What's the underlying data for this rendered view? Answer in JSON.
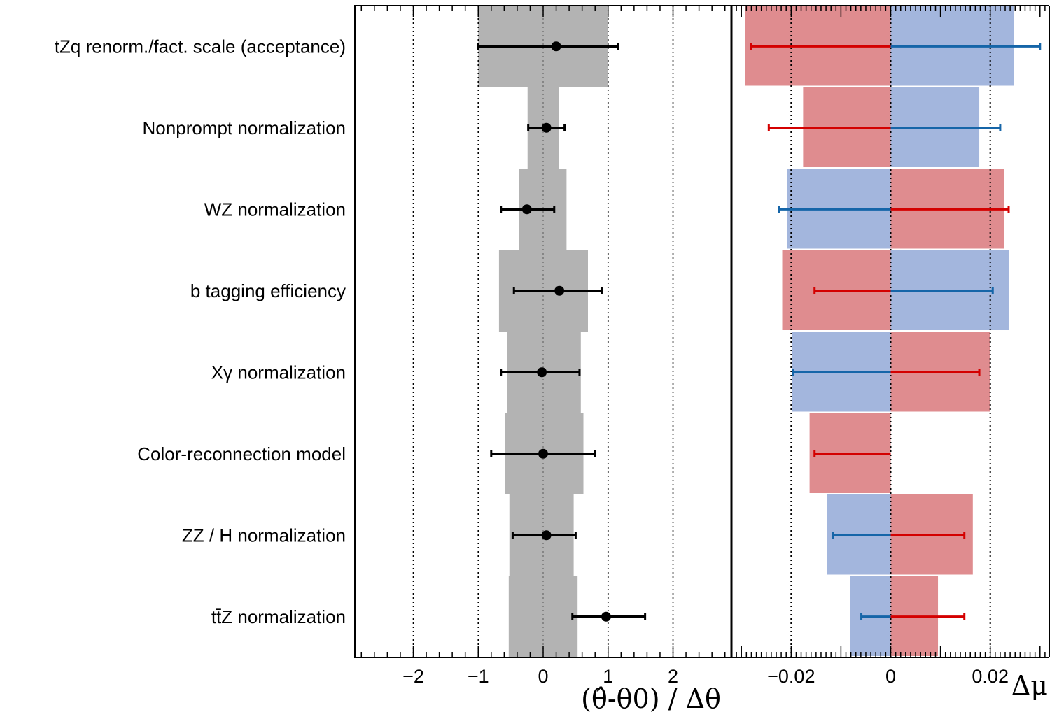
{
  "chart_data": [
    {
      "type": "pull-plot",
      "xlabel": "(θ̂-θ0) / Δθ",
      "xlim": [
        -2.9,
        2.9
      ],
      "xticks": [
        -2,
        -1,
        0,
        1,
        2
      ],
      "tick_labels": [
        "−2",
        "−1",
        "0",
        "1",
        "2"
      ],
      "gridlines": [
        -2,
        -1,
        0,
        1,
        2
      ],
      "categories": [
        "tZq renorm./fact. scale (acceptance)",
        "Nonprompt normalization",
        "WZ normalization",
        "b tagging efficiency",
        "Xγ normalization",
        "Color-reconnection model",
        "ZZ / H normalization",
        "tt̄Z normalization"
      ],
      "pulls": [
        {
          "value": 0.2,
          "err_lo": 1.2,
          "err_hi": 0.95
        },
        {
          "value": 0.05,
          "err_lo": 0.28,
          "err_hi": 0.28
        },
        {
          "value": -0.25,
          "err_lo": 0.4,
          "err_hi": 0.42
        },
        {
          "value": 0.25,
          "err_lo": 0.7,
          "err_hi": 0.65
        },
        {
          "value": -0.02,
          "err_lo": 0.63,
          "err_hi": 0.58
        },
        {
          "value": 0.0,
          "err_lo": 0.8,
          "err_hi": 0.8
        },
        {
          "value": 0.05,
          "err_lo": 0.52,
          "err_hi": 0.45
        },
        {
          "value": 0.97,
          "err_lo": 0.52,
          "err_hi": 0.6
        }
      ],
      "constraint_band": [
        {
          "lo": -1.0,
          "hi": 1.0
        },
        {
          "lo": -0.24,
          "hi": 0.24
        },
        {
          "lo": -0.37,
          "hi": 0.36
        },
        {
          "lo": -0.68,
          "hi": 0.69
        },
        {
          "lo": -0.55,
          "hi": 0.58
        },
        {
          "lo": -0.59,
          "hi": 0.62
        },
        {
          "lo": -0.52,
          "hi": 0.47
        },
        {
          "lo": -0.53,
          "hi": 0.53
        }
      ],
      "band_color": "#b3b3b3",
      "point_color": "#000000"
    },
    {
      "type": "impact",
      "xlabel": "Δμ",
      "xlim": [
        -0.032,
        0.032
      ],
      "xticks": [
        -0.02,
        0,
        0.02
      ],
      "tick_labels": [
        "−0.02",
        "0",
        "0.02"
      ],
      "gridlines": [
        -0.02,
        0,
        0.02
      ],
      "up_color": "#a3b6dd",
      "down_color": "#df8c8f",
      "up_bar_color": "#1565a8",
      "down_bar_color": "#d40000",
      "impacts": [
        {
          "up": 0.0247,
          "down": -0.0292,
          "bar_up": 0.03,
          "bar_down": -0.028
        },
        {
          "up": 0.0178,
          "down": -0.0176,
          "bar_up": 0.022,
          "bar_down": -0.0245
        },
        {
          "up": -0.0208,
          "down": 0.0228,
          "bar_up": -0.0225,
          "bar_down": 0.0237
        },
        {
          "up": 0.0237,
          "down": -0.0218,
          "bar_up": 0.0205,
          "bar_down": -0.0153
        },
        {
          "up": -0.0198,
          "down": 0.0199,
          "bar_up": -0.0196,
          "bar_down": 0.0178
        },
        {
          "up": 0.0,
          "down": -0.0163,
          "bar_up": 0.0,
          "bar_down": -0.0153
        },
        {
          "up": -0.0128,
          "down": 0.0165,
          "bar_up": -0.0116,
          "bar_down": 0.0148
        },
        {
          "up": -0.0081,
          "down": 0.0095,
          "bar_up": -0.0059,
          "bar_down": 0.0148
        }
      ]
    }
  ]
}
